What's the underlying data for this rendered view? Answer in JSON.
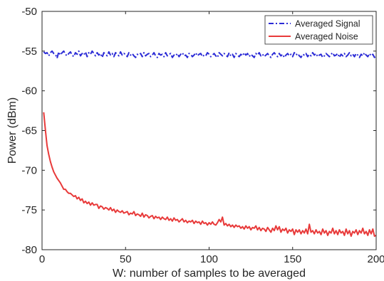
{
  "chart_data": {
    "type": "line",
    "xlabel": "W: number of samples to be averaged",
    "ylabel": "Power (dBm)",
    "xlim": [
      0,
      200
    ],
    "ylim": [
      -80,
      -50
    ],
    "xticks": [
      0,
      50,
      100,
      150,
      200
    ],
    "yticks": [
      -80,
      -75,
      -70,
      -65,
      -60,
      -55,
      -50
    ],
    "grid": false,
    "legend_position": "top-right",
    "series": [
      {
        "name": "Averaged Signal",
        "color": "#2b2bd6",
        "line_style": "dash-dot",
        "x": [
          1,
          2,
          3,
          4,
          5,
          6,
          7,
          8,
          9,
          10,
          11,
          12,
          13,
          14,
          15,
          16,
          17,
          18,
          19,
          20,
          21,
          22,
          23,
          24,
          25,
          26,
          27,
          28,
          29,
          30,
          31,
          32,
          33,
          34,
          35,
          36,
          37,
          38,
          39,
          40,
          41,
          42,
          43,
          44,
          45,
          46,
          47,
          48,
          49,
          50,
          51,
          52,
          53,
          54,
          55,
          56,
          57,
          58,
          59,
          60,
          61,
          62,
          63,
          64,
          65,
          66,
          67,
          68,
          69,
          70,
          71,
          72,
          73,
          74,
          75,
          76,
          77,
          78,
          79,
          80,
          81,
          82,
          83,
          84,
          85,
          86,
          87,
          88,
          89,
          90,
          91,
          92,
          93,
          94,
          95,
          96,
          97,
          98,
          99,
          100,
          101,
          102,
          103,
          104,
          105,
          106,
          107,
          108,
          109,
          110,
          111,
          112,
          113,
          114,
          115,
          116,
          117,
          118,
          119,
          120,
          121,
          122,
          123,
          124,
          125,
          126,
          127,
          128,
          129,
          130,
          131,
          132,
          133,
          134,
          135,
          136,
          137,
          138,
          139,
          140,
          141,
          142,
          143,
          144,
          145,
          146,
          147,
          148,
          149,
          150,
          151,
          152,
          153,
          154,
          155,
          156,
          157,
          158,
          159,
          160,
          161,
          162,
          163,
          164,
          165,
          166,
          167,
          168,
          169,
          170,
          171,
          172,
          173,
          174,
          175,
          176,
          177,
          178,
          179,
          180,
          181,
          182,
          183,
          184,
          185,
          186,
          187,
          188,
          189,
          190,
          191,
          192,
          193,
          194,
          195,
          196,
          197,
          198,
          199,
          200
        ],
        "y": [
          -55.1,
          -55.3,
          -55.2,
          -55.6,
          -55.2,
          -55.0,
          -55.3,
          -55.4,
          -55.9,
          -55.1,
          -55.5,
          -55.2,
          -55.0,
          -55.4,
          -55.6,
          -55.3,
          -55.1,
          -55.5,
          -55.7,
          -55.2,
          -55.4,
          -55.0,
          -55.6,
          -55.3,
          -55.5,
          -55.1,
          -55.7,
          -55.2,
          -55.4,
          -55.0,
          -55.3,
          -55.6,
          -55.2,
          -55.5,
          -55.3,
          -55.8,
          -55.2,
          -55.4,
          -55.6,
          -55.1,
          -55.5,
          -55.3,
          -55.7,
          -55.2,
          -55.4,
          -55.6,
          -55.1,
          -55.5,
          -55.3,
          -55.4,
          -55.7,
          -55.2,
          -55.5,
          -55.3,
          -55.6,
          -55.8,
          -55.4,
          -55.5,
          -55.3,
          -55.7,
          -55.2,
          -55.6,
          -55.4,
          -55.3,
          -55.7,
          -55.5,
          -55.2,
          -55.6,
          -55.8,
          -55.3,
          -55.5,
          -55.4,
          -55.7,
          -55.2,
          -55.6,
          -55.4,
          -55.3,
          -55.8,
          -55.5,
          -55.6,
          -55.3,
          -55.7,
          -55.4,
          -55.2,
          -55.6,
          -55.5,
          -55.8,
          -55.3,
          -55.4,
          -55.7,
          -55.5,
          -55.2,
          -55.6,
          -55.4,
          -55.3,
          -55.7,
          -55.5,
          -55.6,
          -55.2,
          -55.4,
          -55.7,
          -55.5,
          -55.3,
          -55.6,
          -55.8,
          -55.2,
          -55.4,
          -55.6,
          -55.3,
          -55.5,
          -55.7,
          -55.2,
          -55.6,
          -55.4,
          -55.8,
          -55.3,
          -55.5,
          -55.7,
          -55.4,
          -55.6,
          -55.2,
          -55.5,
          -55.3,
          -55.7,
          -55.4,
          -55.6,
          -55.8,
          -55.3,
          -55.5,
          -55.2,
          -55.6,
          -55.4,
          -55.7,
          -55.5,
          -55.3,
          -55.6,
          -55.8,
          -55.4,
          -55.2,
          -55.5,
          -55.7,
          -55.3,
          -55.6,
          -55.4,
          -55.8,
          -55.5,
          -55.3,
          -55.6,
          -55.4,
          -55.7,
          -55.2,
          -55.5,
          -55.3,
          -55.6,
          -55.8,
          -55.4,
          -55.5,
          -55.3,
          -55.7,
          -55.4,
          -55.6,
          -55.2,
          -55.5,
          -55.3,
          -55.7,
          -55.5,
          -55.4,
          -55.8,
          -55.6,
          -55.3,
          -55.5,
          -55.7,
          -55.4,
          -55.2,
          -55.6,
          -55.5,
          -55.3,
          -55.8,
          -55.4,
          -55.6,
          -55.3,
          -55.7,
          -55.5,
          -55.2,
          -55.6,
          -55.4,
          -55.7,
          -55.3,
          -55.5,
          -55.8,
          -55.4,
          -55.6,
          -55.2,
          -55.5,
          -55.7,
          -55.3,
          -55.6,
          -55.4,
          -55.8,
          -55.5
        ]
      },
      {
        "name": "Averaged Noise",
        "color": "#e83a3a",
        "line_style": "solid",
        "x": [
          1,
          2,
          3,
          4,
          5,
          6,
          7,
          8,
          9,
          10,
          11,
          12,
          13,
          14,
          15,
          16,
          17,
          18,
          19,
          20,
          21,
          22,
          23,
          24,
          25,
          26,
          27,
          28,
          29,
          30,
          31,
          32,
          33,
          34,
          35,
          36,
          37,
          38,
          39,
          40,
          41,
          42,
          43,
          44,
          45,
          46,
          47,
          48,
          49,
          50,
          51,
          52,
          53,
          54,
          55,
          56,
          57,
          58,
          59,
          60,
          61,
          62,
          63,
          64,
          65,
          66,
          67,
          68,
          69,
          70,
          71,
          72,
          73,
          74,
          75,
          76,
          77,
          78,
          79,
          80,
          81,
          82,
          83,
          84,
          85,
          86,
          87,
          88,
          89,
          90,
          91,
          92,
          93,
          94,
          95,
          96,
          97,
          98,
          99,
          100,
          101,
          102,
          103,
          104,
          105,
          106,
          107,
          108,
          109,
          110,
          111,
          112,
          113,
          114,
          115,
          116,
          117,
          118,
          119,
          120,
          121,
          122,
          123,
          124,
          125,
          126,
          127,
          128,
          129,
          130,
          131,
          132,
          133,
          134,
          135,
          136,
          137,
          138,
          139,
          140,
          141,
          142,
          143,
          144,
          145,
          146,
          147,
          148,
          149,
          150,
          151,
          152,
          153,
          154,
          155,
          156,
          157,
          158,
          159,
          160,
          161,
          162,
          163,
          164,
          165,
          166,
          167,
          168,
          169,
          170,
          171,
          172,
          173,
          174,
          175,
          176,
          177,
          178,
          179,
          180,
          181,
          182,
          183,
          184,
          185,
          186,
          187,
          188,
          189,
          190,
          191,
          192,
          193,
          194,
          195,
          196,
          197,
          198,
          199,
          200
        ],
        "y": [
          -62.7,
          -64.9,
          -66.9,
          -68.0,
          -68.9,
          -69.6,
          -70.2,
          -70.6,
          -71.0,
          -71.3,
          -71.6,
          -72.0,
          -72.4,
          -72.4,
          -72.7,
          -72.9,
          -72.9,
          -73.1,
          -73.3,
          -73.2,
          -73.6,
          -73.4,
          -73.8,
          -73.6,
          -74.1,
          -73.9,
          -74.2,
          -74.0,
          -74.4,
          -74.1,
          -74.4,
          -74.3,
          -74.3,
          -74.8,
          -74.5,
          -74.6,
          -74.9,
          -74.7,
          -74.8,
          -75.0,
          -74.7,
          -75.1,
          -74.9,
          -75.3,
          -75.0,
          -75.2,
          -75.3,
          -75.1,
          -75.4,
          -75.3,
          -75.2,
          -75.6,
          -75.4,
          -75.5,
          -75.2,
          -75.7,
          -75.5,
          -75.6,
          -75.8,
          -75.4,
          -75.9,
          -75.6,
          -75.7,
          -76.0,
          -75.8,
          -75.7,
          -76.1,
          -75.8,
          -76.0,
          -75.9,
          -76.2,
          -75.9,
          -76.1,
          -76.2,
          -75.9,
          -76.3,
          -76.1,
          -76.4,
          -76.0,
          -76.3,
          -76.2,
          -76.5,
          -76.3,
          -76.1,
          -76.5,
          -76.3,
          -76.6,
          -76.4,
          -76.5,
          -76.3,
          -76.7,
          -76.4,
          -76.6,
          -76.5,
          -76.8,
          -76.4,
          -76.7,
          -76.6,
          -76.9,
          -76.6,
          -76.8,
          -76.5,
          -76.8,
          -76.9,
          -76.6,
          -76.2,
          -76.5,
          -75.9,
          -76.9,
          -76.7,
          -77.0,
          -76.8,
          -77.1,
          -76.9,
          -77.2,
          -76.9,
          -77.1,
          -77.0,
          -77.3,
          -77.1,
          -77.4,
          -77.0,
          -77.3,
          -77.1,
          -77.5,
          -77.2,
          -77.3,
          -77.0,
          -77.5,
          -77.2,
          -77.6,
          -77.3,
          -77.4,
          -77.7,
          -77.2,
          -77.5,
          -77.8,
          -77.3,
          -77.6,
          -77.0,
          -77.5,
          -77.1,
          -77.8,
          -77.4,
          -77.6,
          -77.3,
          -77.9,
          -77.5,
          -77.7,
          -77.4,
          -78.1,
          -77.5,
          -77.8,
          -77.5,
          -78.0,
          -77.6,
          -77.9,
          -77.4,
          -78.0,
          -76.8,
          -77.8,
          -77.6,
          -78.0,
          -77.5,
          -77.9,
          -77.7,
          -78.1,
          -77.4,
          -77.9,
          -77.6,
          -78.2,
          -77.7,
          -77.9,
          -77.3,
          -78.0,
          -77.6,
          -78.1,
          -77.5,
          -77.9,
          -77.7,
          -78.2,
          -77.4,
          -78.0,
          -77.6,
          -78.3,
          -77.7,
          -77.9,
          -77.5,
          -78.1,
          -77.6,
          -77.9,
          -77.3,
          -78.0,
          -77.7,
          -78.2,
          -77.5,
          -78.0,
          -77.4,
          -78.3,
          -78.2
        ]
      }
    ]
  }
}
